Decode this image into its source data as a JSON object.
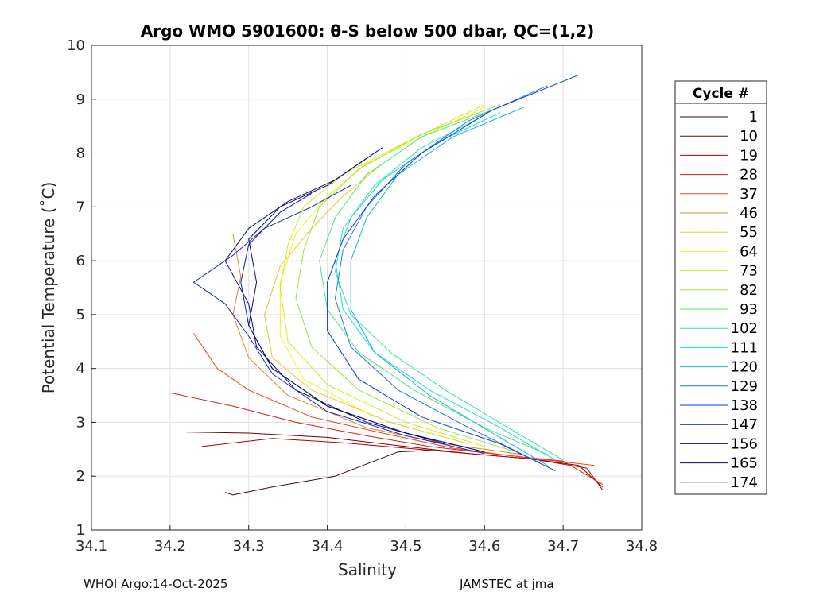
{
  "chart_data": {
    "type": "line",
    "title": "Argo WMO 5901600: θ-S below 500 dbar,  QC=(1,2)",
    "xlabel": "Salinity",
    "ylabel": "Potential Temperature (˚C)",
    "xlim": [
      34.1,
      34.8
    ],
    "ylim": [
      1,
      10
    ],
    "x_ticks": [
      "34.1",
      "34.2",
      "34.3",
      "34.4",
      "34.5",
      "34.6",
      "34.7",
      "34.8"
    ],
    "y_ticks": [
      "1",
      "2",
      "3",
      "4",
      "5",
      "6",
      "7",
      "8",
      "9",
      "10"
    ],
    "grid": true,
    "legend": {
      "title": "Cycle #",
      "placement": "right-outside",
      "entries": [
        {
          "label": "1",
          "color": "#3a0a0a"
        },
        {
          "label": "10",
          "color": "#7a0000"
        },
        {
          "label": "19",
          "color": "#b00000"
        },
        {
          "label": "28",
          "color": "#dd1e10"
        },
        {
          "label": "37",
          "color": "#ee4a1e"
        },
        {
          "label": "46",
          "color": "#d98a2a"
        },
        {
          "label": "55",
          "color": "#e6c92a"
        },
        {
          "label": "64",
          "color": "#f2f21a"
        },
        {
          "label": "73",
          "color": "#c9f020"
        },
        {
          "label": "82",
          "color": "#9ae63a"
        },
        {
          "label": "93",
          "color": "#4ee66a"
        },
        {
          "label": "102",
          "color": "#2ee6b0"
        },
        {
          "label": "111",
          "color": "#1ad9d9"
        },
        {
          "label": "120",
          "color": "#1ab2e0"
        },
        {
          "label": "129",
          "color": "#1a7ae0"
        },
        {
          "label": "138",
          "color": "#0a3ae0"
        },
        {
          "label": "147",
          "color": "#0a1ab8"
        },
        {
          "label": "156",
          "color": "#0a0a8a"
        },
        {
          "label": "165",
          "color": "#0a0a5a"
        },
        {
          "label": "174",
          "color": "#1a2ab8"
        }
      ]
    },
    "series": [
      {
        "name": "1",
        "color": "#3a0a0a",
        "points": [
          [
            34.27,
            1.7
          ],
          [
            34.28,
            1.65
          ],
          [
            34.33,
            1.8
          ],
          [
            34.41,
            2.0
          ],
          [
            34.49,
            2.45
          ],
          [
            34.53,
            2.48
          ]
        ]
      },
      {
        "name": "10",
        "color": "#7a0000",
        "points": [
          [
            34.22,
            2.82
          ],
          [
            34.3,
            2.8
          ],
          [
            34.4,
            2.72
          ],
          [
            34.5,
            2.55
          ],
          [
            34.58,
            2.42
          ],
          [
            34.66,
            2.32
          ],
          [
            34.72,
            2.2
          ],
          [
            34.75,
            1.8
          ]
        ]
      },
      {
        "name": "19",
        "color": "#b00000",
        "points": [
          [
            34.24,
            2.55
          ],
          [
            34.33,
            2.7
          ],
          [
            34.42,
            2.62
          ],
          [
            34.5,
            2.52
          ],
          [
            34.58,
            2.42
          ],
          [
            34.66,
            2.32
          ],
          [
            34.73,
            2.15
          ],
          [
            34.75,
            1.75
          ]
        ]
      },
      {
        "name": "28",
        "color": "#dd1e10",
        "points": [
          [
            34.2,
            3.55
          ],
          [
            34.28,
            3.3
          ],
          [
            34.36,
            3.0
          ],
          [
            34.45,
            2.75
          ],
          [
            34.53,
            2.55
          ],
          [
            34.62,
            2.4
          ],
          [
            34.7,
            2.28
          ],
          [
            34.75,
            1.85
          ]
        ]
      },
      {
        "name": "37",
        "color": "#ee4a1e",
        "points": [
          [
            34.23,
            4.65
          ],
          [
            34.26,
            4.0
          ],
          [
            34.3,
            3.6
          ],
          [
            34.38,
            3.1
          ],
          [
            34.47,
            2.8
          ],
          [
            34.56,
            2.52
          ],
          [
            34.65,
            2.35
          ],
          [
            34.74,
            2.2
          ]
        ]
      },
      {
        "name": "46",
        "color": "#d98a2a",
        "points": [
          [
            34.28,
            6.5
          ],
          [
            34.29,
            5.7
          ],
          [
            34.28,
            5.0
          ],
          [
            34.3,
            4.2
          ],
          [
            34.35,
            3.5
          ],
          [
            34.45,
            2.9
          ],
          [
            34.55,
            2.6
          ],
          [
            34.65,
            2.4
          ]
        ]
      },
      {
        "name": "55",
        "color": "#e6c92a",
        "points": [
          [
            34.47,
            7.8
          ],
          [
            34.42,
            7.2
          ],
          [
            34.38,
            6.6
          ],
          [
            34.34,
            5.9
          ],
          [
            34.32,
            5.0
          ],
          [
            34.33,
            4.2
          ],
          [
            34.38,
            3.6
          ],
          [
            34.48,
            3.0
          ],
          [
            34.58,
            2.6
          ]
        ]
      },
      {
        "name": "64",
        "color": "#f2f21a",
        "points": [
          [
            34.6,
            8.85
          ],
          [
            34.52,
            8.3
          ],
          [
            34.45,
            7.8
          ],
          [
            34.4,
            7.2
          ],
          [
            34.36,
            6.5
          ],
          [
            34.34,
            5.6
          ],
          [
            34.34,
            4.6
          ],
          [
            34.37,
            3.8
          ],
          [
            34.46,
            3.1
          ]
        ]
      },
      {
        "name": "73",
        "color": "#c9f020",
        "points": [
          [
            34.6,
            8.9
          ],
          [
            34.5,
            8.2
          ],
          [
            34.42,
            7.6
          ],
          [
            34.37,
            7.0
          ],
          [
            34.35,
            6.3
          ],
          [
            34.34,
            5.5
          ],
          [
            34.35,
            4.5
          ],
          [
            34.4,
            3.7
          ],
          [
            34.5,
            3.0
          ],
          [
            34.6,
            2.55
          ]
        ]
      },
      {
        "name": "82",
        "color": "#9ae63a",
        "points": [
          [
            34.62,
            8.9
          ],
          [
            34.52,
            8.35
          ],
          [
            34.44,
            7.7
          ],
          [
            34.39,
            7.0
          ],
          [
            34.37,
            6.2
          ],
          [
            34.36,
            5.3
          ],
          [
            34.38,
            4.4
          ],
          [
            34.44,
            3.6
          ],
          [
            34.54,
            2.9
          ],
          [
            34.64,
            2.45
          ]
        ]
      },
      {
        "name": "93",
        "color": "#4ee66a",
        "points": [
          [
            34.61,
            8.8
          ],
          [
            34.52,
            8.3
          ],
          [
            34.45,
            7.6
          ],
          [
            34.41,
            6.8
          ],
          [
            34.39,
            6.0
          ],
          [
            34.4,
            5.1
          ],
          [
            34.44,
            4.3
          ],
          [
            34.51,
            3.6
          ],
          [
            34.6,
            2.9
          ],
          [
            34.68,
            2.4
          ]
        ]
      },
      {
        "name": "102",
        "color": "#2ee6b0",
        "points": [
          [
            34.6,
            8.7
          ],
          [
            34.52,
            8.1
          ],
          [
            34.46,
            7.4
          ],
          [
            34.42,
            6.6
          ],
          [
            34.41,
            5.8
          ],
          [
            34.43,
            5.0
          ],
          [
            34.48,
            4.3
          ],
          [
            34.55,
            3.6
          ],
          [
            34.63,
            2.9
          ],
          [
            34.7,
            2.3
          ]
        ]
      },
      {
        "name": "111",
        "color": "#1ad9d9",
        "points": [
          [
            34.62,
            8.75
          ],
          [
            34.54,
            8.2
          ],
          [
            34.47,
            7.5
          ],
          [
            34.43,
            6.8
          ],
          [
            34.41,
            6.0
          ],
          [
            34.42,
            5.1
          ],
          [
            34.46,
            4.3
          ],
          [
            34.53,
            3.6
          ],
          [
            34.62,
            2.9
          ],
          [
            34.69,
            2.3
          ]
        ]
      },
      {
        "name": "120",
        "color": "#1ab2e0",
        "points": [
          [
            34.65,
            8.85
          ],
          [
            34.56,
            8.3
          ],
          [
            34.49,
            7.6
          ],
          [
            34.45,
            6.8
          ],
          [
            34.43,
            6.0
          ],
          [
            34.43,
            5.1
          ],
          [
            34.46,
            4.3
          ],
          [
            34.53,
            3.5
          ],
          [
            34.61,
            2.8
          ],
          [
            34.68,
            2.2
          ]
        ]
      },
      {
        "name": "129",
        "color": "#1a7ae0",
        "points": [
          [
            34.68,
            9.25
          ],
          [
            34.58,
            8.6
          ],
          [
            34.5,
            7.8
          ],
          [
            34.45,
            7.0
          ],
          [
            34.42,
            6.2
          ],
          [
            34.41,
            5.3
          ],
          [
            34.43,
            4.4
          ],
          [
            34.49,
            3.6
          ],
          [
            34.58,
            2.9
          ],
          [
            34.67,
            2.25
          ]
        ]
      },
      {
        "name": "138",
        "color": "#0a3ae0",
        "points": [
          [
            34.72,
            9.45
          ],
          [
            34.61,
            8.8
          ],
          [
            34.52,
            8.0
          ],
          [
            34.46,
            7.2
          ],
          [
            34.42,
            6.4
          ],
          [
            34.4,
            5.6
          ],
          [
            34.4,
            4.7
          ],
          [
            34.44,
            3.8
          ],
          [
            34.52,
            3.1
          ],
          [
            34.62,
            2.6
          ],
          [
            34.69,
            2.1
          ]
        ]
      },
      {
        "name": "147",
        "color": "#0a1ab8",
        "points": [
          [
            34.38,
            7.25
          ],
          [
            34.34,
            6.9
          ],
          [
            34.3,
            6.3
          ],
          [
            34.29,
            5.6
          ],
          [
            34.3,
            4.8
          ],
          [
            34.33,
            4.0
          ],
          [
            34.4,
            3.3
          ],
          [
            34.5,
            2.8
          ],
          [
            34.6,
            2.45
          ]
        ]
      },
      {
        "name": "156",
        "color": "#0a0a8a",
        "points": [
          [
            34.47,
            8.1
          ],
          [
            34.41,
            7.5
          ],
          [
            34.35,
            7.1
          ],
          [
            34.3,
            6.6
          ],
          [
            34.27,
            6.0
          ],
          [
            34.3,
            5.2
          ],
          [
            34.31,
            4.4
          ],
          [
            34.36,
            3.6
          ],
          [
            34.45,
            3.0
          ],
          [
            34.55,
            2.6
          ]
        ]
      },
      {
        "name": "165",
        "color": "#0a0a5a",
        "points": [
          [
            34.45,
            7.9
          ],
          [
            34.4,
            7.4
          ],
          [
            34.34,
            7.0
          ],
          [
            34.3,
            6.4
          ],
          [
            34.31,
            5.6
          ],
          [
            34.3,
            4.8
          ],
          [
            34.33,
            4.0
          ],
          [
            34.4,
            3.3
          ],
          [
            34.5,
            2.8
          ],
          [
            34.6,
            2.45
          ]
        ]
      },
      {
        "name": "174",
        "color": "#1a2ab8",
        "points": [
          [
            34.43,
            7.4
          ],
          [
            34.38,
            7.0
          ],
          [
            34.32,
            6.6
          ],
          [
            34.28,
            6.1
          ],
          [
            34.23,
            5.6
          ],
          [
            34.27,
            5.2
          ],
          [
            34.3,
            4.6
          ],
          [
            34.33,
            3.9
          ],
          [
            34.4,
            3.2
          ],
          [
            34.5,
            2.75
          ],
          [
            34.6,
            2.42
          ]
        ]
      }
    ]
  },
  "footer": {
    "left": "WHOI Argo:14-Oct-2025",
    "right": "JAMSTEC at jma"
  }
}
